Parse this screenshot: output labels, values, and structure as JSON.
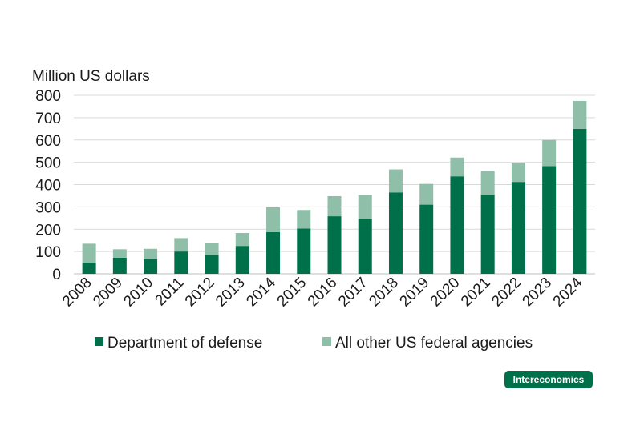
{
  "chart_data": {
    "type": "bar",
    "stacked": true,
    "ylabel": "Million US dollars",
    "xlabel": "",
    "title": "",
    "ylim": [
      0,
      800
    ],
    "yticks": [
      0,
      100,
      200,
      300,
      400,
      500,
      600,
      700,
      800
    ],
    "grid": true,
    "legend_position": "bottom",
    "categories": [
      "2008",
      "2009",
      "2010",
      "2011",
      "2012",
      "2013",
      "2014",
      "2015",
      "2016",
      "2017",
      "2018",
      "2019",
      "2020",
      "2021",
      "2022",
      "2023",
      "2024"
    ],
    "series": [
      {
        "name": "Department of defense",
        "color": "#00704a",
        "values": [
          50,
          72,
          65,
          100,
          85,
          125,
          187,
          203,
          258,
          246,
          365,
          310,
          437,
          355,
          412,
          483,
          650
        ]
      },
      {
        "name": "All other US federal agencies",
        "color": "#8fbfa9",
        "values": [
          85,
          38,
          47,
          60,
          53,
          58,
          111,
          83,
          90,
          108,
          103,
          93,
          84,
          105,
          86,
          117,
          125
        ]
      }
    ]
  },
  "branding": {
    "label": "Intereconomics",
    "color": "#00704a"
  }
}
